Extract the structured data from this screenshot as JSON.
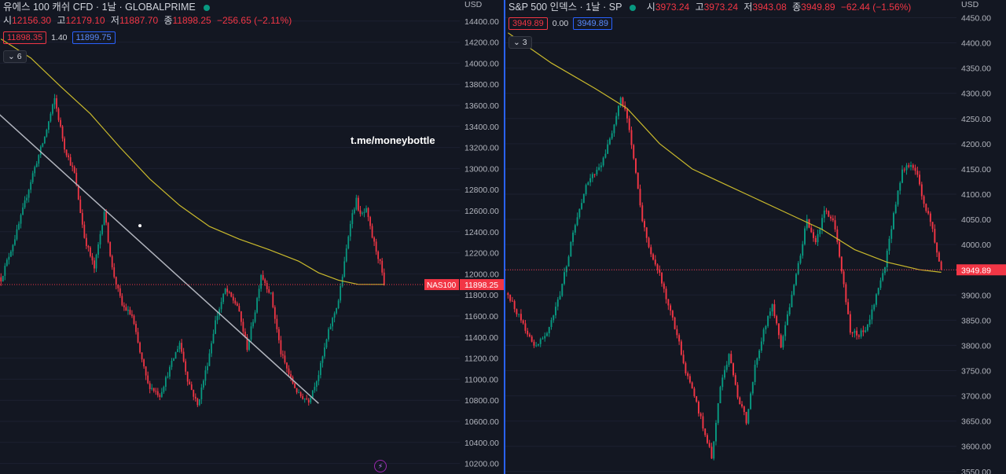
{
  "charts": [
    {
      "id": "left",
      "legend": {
        "symbol": "유에스 100 캐쉬 CFD · 1날 · GLOBALPRIME",
        "o_label": "시",
        "o": "12156.30",
        "h_label": "고",
        "h": "12179.10",
        "l_label": "저",
        "l": "11887.70",
        "c_label": "종",
        "c": "11898.25",
        "change": "−256.65 (−2.11%)"
      },
      "quote": {
        "bid": "11898.35",
        "spread": "1.40",
        "ask": "11899.75"
      },
      "indicators_count": "6",
      "currency": "USD",
      "price_tag": {
        "symbol": "NAS100",
        "value": "11898.25"
      },
      "watermark": "t.me/moneybottle"
    },
    {
      "id": "right",
      "legend": {
        "symbol": "S&P 500 인덱스 · 1날 · SP",
        "o_label": "시",
        "o": "3973.24",
        "h_label": "고",
        "h": "3973.24",
        "l_label": "저",
        "l": "3943.08",
        "c_label": "종",
        "c": "3949.89",
        "change": "−62.44 (−1.56%)"
      },
      "quote": {
        "bid": "3949.89",
        "spread": "0.00",
        "ask": "3949.89"
      },
      "indicators_count": "3",
      "currency": "USD",
      "price_tag": {
        "value": "3949.89"
      }
    }
  ],
  "colors": {
    "up": "#089981",
    "down": "#f23645",
    "ma": "#c9b92c",
    "trendline": "#b2b5be",
    "background": "#131722",
    "divider": "#2962ff"
  },
  "chart_data": [
    {
      "type": "candlestick",
      "title": "유에스 100 캐쉬 CFD · 1날 · GLOBALPRIME",
      "ylim": [
        10100,
        14600
      ],
      "yticks": [
        "14400.00",
        "14200.00",
        "14000.00",
        "13800.00",
        "13600.00",
        "13400.00",
        "13200.00",
        "13000.00",
        "12800.00",
        "12600.00",
        "12400.00",
        "12200.00",
        "12000.00",
        "11800.00",
        "11600.00",
        "11400.00",
        "11200.00",
        "11000.00",
        "10800.00",
        "10600.00",
        "10400.00",
        "10200.00"
      ],
      "last_price": 11898.25,
      "anchors": [
        [
          0,
          11950
        ],
        [
          8,
          12400
        ],
        [
          16,
          12950
        ],
        [
          22,
          13300
        ],
        [
          27,
          13660
        ],
        [
          32,
          13200
        ],
        [
          37,
          12950
        ],
        [
          42,
          12350
        ],
        [
          47,
          12050
        ],
        [
          52,
          12600
        ],
        [
          56,
          12050
        ],
        [
          61,
          11700
        ],
        [
          66,
          11600
        ],
        [
          70,
          11250
        ],
        [
          74,
          10950
        ],
        [
          80,
          10850
        ],
        [
          85,
          11100
        ],
        [
          90,
          11350
        ],
        [
          94,
          11000
        ],
        [
          99,
          10750
        ],
        [
          104,
          11150
        ],
        [
          108,
          11550
        ],
        [
          113,
          11850
        ],
        [
          119,
          11700
        ],
        [
          124,
          11300
        ],
        [
          128,
          11650
        ],
        [
          131,
          12000
        ],
        [
          136,
          11800
        ],
        [
          141,
          11250
        ],
        [
          146,
          11000
        ],
        [
          150,
          10850
        ],
        [
          155,
          10800
        ],
        [
          160,
          11050
        ],
        [
          165,
          11450
        ],
        [
          170,
          11750
        ],
        [
          173,
          12100
        ],
        [
          176,
          12500
        ],
        [
          179,
          12700
        ],
        [
          181,
          12550
        ],
        [
          184,
          12600
        ],
        [
          187,
          12350
        ],
        [
          191,
          12100
        ],
        [
          193,
          11898
        ]
      ],
      "ma_line": [
        [
          0,
          14230
        ],
        [
          15,
          14050
        ],
        [
          30,
          13780
        ],
        [
          45,
          13520
        ],
        [
          60,
          13200
        ],
        [
          75,
          12900
        ],
        [
          90,
          12650
        ],
        [
          105,
          12450
        ],
        [
          120,
          12330
        ],
        [
          135,
          12230
        ],
        [
          150,
          12120
        ],
        [
          160,
          12010
        ],
        [
          170,
          11940
        ],
        [
          180,
          11900
        ],
        [
          193,
          11900
        ]
      ],
      "trendline": [
        [
          0,
          13770
        ],
        [
          160,
          10770
        ]
      ]
    },
    {
      "type": "candlestick",
      "title": "S&P 500 인덱스 · 1날 · SP",
      "ylim": [
        3545,
        4485
      ],
      "yticks": [
        "4450.00",
        "4400.00",
        "4350.00",
        "4300.00",
        "4250.00",
        "4200.00",
        "4150.00",
        "4100.00",
        "4050.00",
        "4000.00",
        "3950.00",
        "3900.00",
        "3850.00",
        "3800.00",
        "3750.00",
        "3700.00",
        "3650.00",
        "3600.00",
        "3550.00"
      ],
      "last_price": 3949.89,
      "anchors": [
        [
          0,
          3900
        ],
        [
          6,
          3850
        ],
        [
          12,
          3800
        ],
        [
          18,
          3820
        ],
        [
          24,
          3900
        ],
        [
          30,
          4020
        ],
        [
          36,
          4120
        ],
        [
          42,
          4150
        ],
        [
          48,
          4220
        ],
        [
          52,
          4290
        ],
        [
          55,
          4250
        ],
        [
          58,
          4170
        ],
        [
          62,
          4050
        ],
        [
          66,
          3980
        ],
        [
          70,
          3940
        ],
        [
          74,
          3880
        ],
        [
          78,
          3820
        ],
        [
          82,
          3750
        ],
        [
          86,
          3700
        ],
        [
          90,
          3640
        ],
        [
          94,
          3580
        ],
        [
          98,
          3720
        ],
        [
          102,
          3780
        ],
        [
          106,
          3700
        ],
        [
          110,
          3650
        ],
        [
          114,
          3760
        ],
        [
          118,
          3830
        ],
        [
          122,
          3880
        ],
        [
          126,
          3800
        ],
        [
          130,
          3880
        ],
        [
          134,
          3960
        ],
        [
          138,
          4050
        ],
        [
          142,
          4000
        ],
        [
          146,
          4070
        ],
        [
          150,
          4050
        ],
        [
          154,
          3950
        ],
        [
          158,
          3830
        ],
        [
          162,
          3820
        ],
        [
          166,
          3840
        ],
        [
          170,
          3900
        ],
        [
          174,
          3960
        ],
        [
          178,
          4060
        ],
        [
          182,
          4150
        ],
        [
          186,
          4160
        ],
        [
          189,
          4140
        ],
        [
          192,
          4080
        ],
        [
          195,
          4050
        ],
        [
          198,
          3980
        ],
        [
          200,
          3950
        ]
      ],
      "ma_line": [
        [
          0,
          4420
        ],
        [
          20,
          4360
        ],
        [
          40,
          4310
        ],
        [
          55,
          4270
        ],
        [
          70,
          4200
        ],
        [
          85,
          4150
        ],
        [
          100,
          4120
        ],
        [
          115,
          4090
        ],
        [
          130,
          4060
        ],
        [
          145,
          4030
        ],
        [
          160,
          3990
        ],
        [
          175,
          3965
        ],
        [
          190,
          3950
        ],
        [
          200,
          3945
        ]
      ]
    }
  ]
}
